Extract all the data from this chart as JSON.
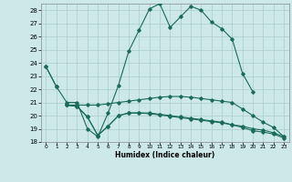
{
  "xlabel": "Humidex (Indice chaleur)",
  "bg_color": "#cce8e8",
  "grid_color": "#aacccc",
  "line_color": "#1a6b5a",
  "xlim": [
    -0.5,
    23.5
  ],
  "ylim": [
    18,
    28.5
  ],
  "xticks": [
    0,
    1,
    2,
    3,
    4,
    5,
    6,
    7,
    8,
    9,
    10,
    11,
    12,
    13,
    14,
    15,
    16,
    17,
    18,
    19,
    20,
    21,
    22,
    23
  ],
  "yticks": [
    18,
    19,
    20,
    21,
    22,
    23,
    24,
    25,
    26,
    27,
    28
  ],
  "series": [
    [
      23.7,
      22.2,
      null,
      null,
      null,
      null,
      null,
      null,
      null,
      null,
      null,
      null,
      null,
      null,
      null,
      null,
      null,
      null,
      null,
      null,
      null,
      null,
      null,
      null
    ],
    [
      23.7,
      22.2,
      21.0,
      21.0,
      19.0,
      18.4,
      20.2,
      22.3,
      24.9,
      26.5,
      28.1,
      28.5,
      26.7,
      27.5,
      28.3,
      28.0,
      27.1,
      26.6,
      25.8,
      23.2,
      21.8,
      null,
      null,
      null
    ],
    [
      null,
      null,
      20.8,
      20.8,
      20.8,
      20.8,
      20.9,
      21.0,
      21.1,
      21.2,
      21.3,
      21.4,
      21.45,
      21.45,
      21.4,
      21.3,
      21.2,
      21.1,
      21.0,
      20.5,
      20.0,
      19.5,
      19.1,
      18.4
    ],
    [
      null,
      null,
      20.8,
      20.7,
      19.9,
      18.5,
      19.2,
      20.0,
      20.2,
      20.2,
      20.2,
      20.1,
      20.0,
      19.9,
      19.8,
      19.7,
      19.6,
      19.5,
      19.3,
      19.2,
      19.0,
      18.9,
      18.7,
      18.4
    ],
    [
      null,
      null,
      20.8,
      20.7,
      19.9,
      18.5,
      19.2,
      20.0,
      20.2,
      20.2,
      20.15,
      20.05,
      19.95,
      19.85,
      19.75,
      19.65,
      19.55,
      19.45,
      19.3,
      19.1,
      18.85,
      18.75,
      18.6,
      18.3
    ]
  ]
}
